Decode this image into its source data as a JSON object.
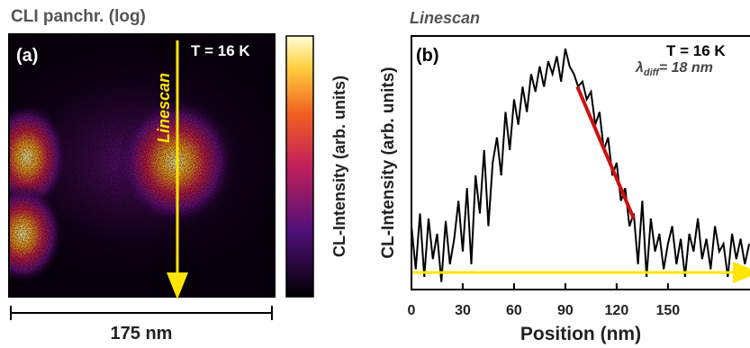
{
  "image_panel": {
    "title": "CLI panchr. (log)",
    "label": "(a)",
    "temperature": "T = 16 K",
    "linescan_label": "Linescan",
    "colorbar_label": "CL-Intensity (arb. units)",
    "scale_bar": "175 nm"
  },
  "chart_data": {
    "type": "line",
    "title": "Linescan",
    "label": "(b)",
    "temperature": "T = 16 K",
    "x_label": "Position (nm)",
    "y_label": "CL-Intensity (arb. units)",
    "color": "#000000",
    "xlim": [
      0,
      198
    ],
    "ylim": [
      0,
      100
    ],
    "xticks": [
      0,
      30,
      60,
      90,
      120,
      150
    ],
    "x": [
      0,
      2.5,
      5,
      7.5,
      10,
      12.5,
      15,
      17.5,
      20,
      22.5,
      25,
      27.5,
      30,
      32.5,
      35,
      37.5,
      40,
      42.5,
      45,
      47.5,
      50,
      52.5,
      55,
      57.5,
      60,
      62.5,
      65,
      67.5,
      70,
      72.5,
      75,
      77.5,
      80,
      82.5,
      85,
      87.5,
      90,
      92.5,
      95,
      97.5,
      100,
      102.5,
      105,
      107.5,
      110,
      112.5,
      115,
      117.5,
      120,
      122.5,
      125,
      127.5,
      130,
      132.5,
      135,
      137.5,
      140,
      142.5,
      145,
      147.5,
      150,
      152.5,
      155,
      157.5,
      160,
      162.5,
      165,
      167.5,
      170,
      172.5,
      175,
      177.5,
      180,
      182.5,
      185,
      187.5,
      190,
      192.5,
      195,
      197.5
    ],
    "values": [
      25,
      8,
      30,
      5,
      28,
      12,
      22,
      3,
      27,
      10,
      20,
      35,
      15,
      40,
      10,
      45,
      30,
      55,
      25,
      50,
      60,
      45,
      70,
      55,
      75,
      65,
      80,
      70,
      85,
      78,
      88,
      80,
      90,
      85,
      92,
      82,
      95,
      88,
      85,
      80,
      82,
      75,
      78,
      65,
      70,
      55,
      60,
      45,
      50,
      35,
      40,
      25,
      30,
      10,
      35,
      5,
      28,
      15,
      22,
      8,
      18,
      25,
      10,
      20,
      5,
      22,
      15,
      28,
      12,
      20,
      8,
      25,
      15,
      18,
      5,
      22,
      12,
      20,
      10,
      18
    ],
    "fit": {
      "x": [
        97,
        130
      ],
      "values": [
        80,
        28
      ],
      "color": "#cc1111"
    },
    "annotation": {
      "symbol": "λ",
      "subscript": "diff",
      "text": "= 18 nm"
    }
  }
}
